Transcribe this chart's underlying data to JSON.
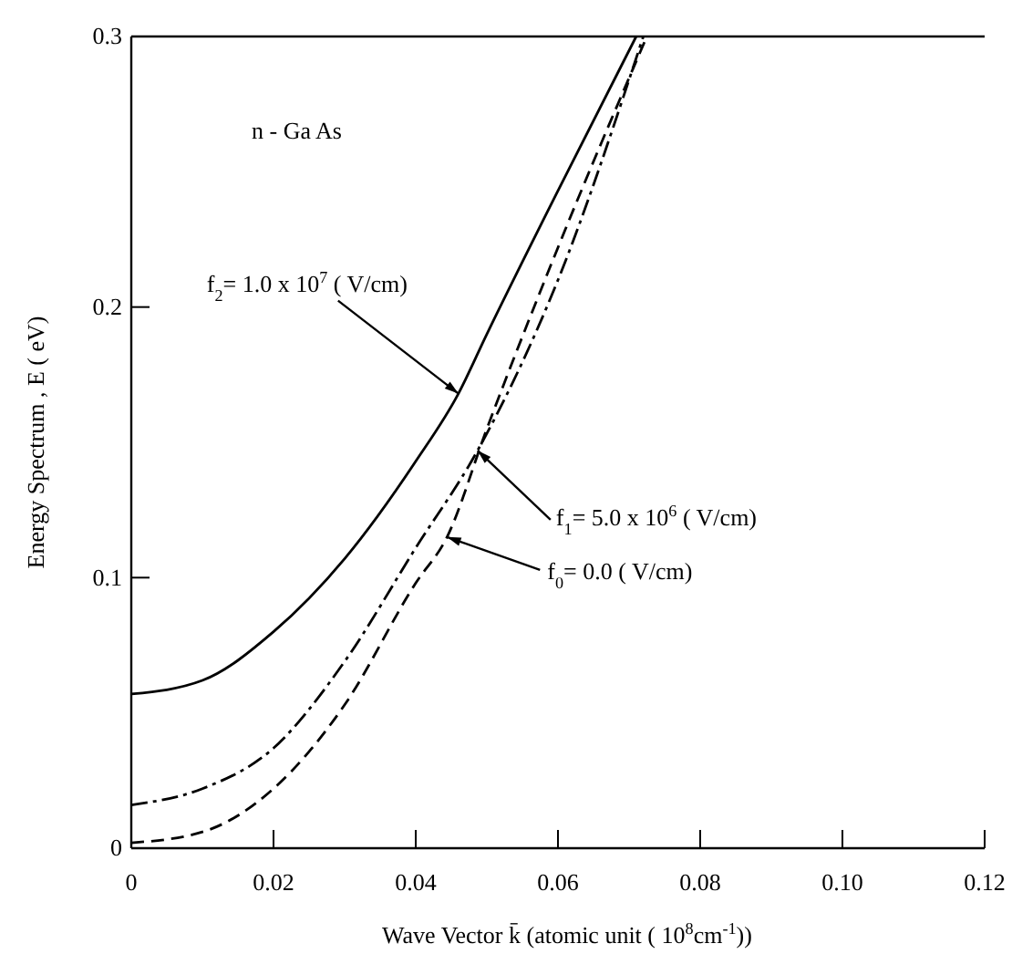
{
  "chart_data": {
    "type": "line",
    "xlabel": "Wave Vector k̄ (atomic unit ( 10$^{8}$cm$^{-1}$))",
    "ylabel": "Energy Spectrum , E ( eV)",
    "xlim": [
      0,
      0.12
    ],
    "xticks": [
      0,
      0.02,
      0.04,
      0.06,
      0.08,
      {
        "value": 0.1,
        "label": "0.10"
      },
      0.12
    ],
    "ylim": [
      0,
      0.3
    ],
    "yticks": [
      0,
      0.1,
      0.2,
      0.3
    ],
    "annotations": [
      "n - Ga As",
      {
        "text": "f$_{2}$= 1.0 x 10$^{7}$ ( V/cm)",
        "x": 0.046,
        "y": 0.168
      },
      {
        "text": "f$_{1}$= 5.0 x 10$^{6}$ ( V/cm)",
        "x": 0.0487,
        "y": 0.147
      },
      {
        "text": "f$_{0}$= 0.0 ( V/cm)",
        "x": 0.0444,
        "y": 0.115
      }
    ],
    "series": [
      {
        "color": "#000000",
        "line_style": "solid",
        "x": [
          0,
          0.01,
          0.02,
          0.03,
          0.04,
          0.046,
          0.05,
          0.06,
          0.071
        ],
        "values": [
          0.057,
          0.062,
          0.08,
          0.107,
          0.143,
          0.168,
          0.19,
          0.243,
          0.3
        ]
      },
      {
        "color": "#000000",
        "line_style": "dashdot",
        "x": [
          0,
          0.01,
          0.02,
          0.03,
          0.04,
          0.0487,
          0.06,
          0.072
        ],
        "values": [
          0.016,
          0.022,
          0.037,
          0.069,
          0.111,
          0.147,
          0.21,
          0.3
        ]
      },
      {
        "color": "#000000",
        "line_style": "dashed",
        "x": [
          0,
          0.01,
          0.02,
          0.03,
          0.04,
          0.0444,
          0.05,
          0.06,
          0.0725
        ],
        "values": [
          0.002,
          0.006,
          0.022,
          0.053,
          0.098,
          0.115,
          0.155,
          0.222,
          0.3
        ]
      }
    ]
  }
}
